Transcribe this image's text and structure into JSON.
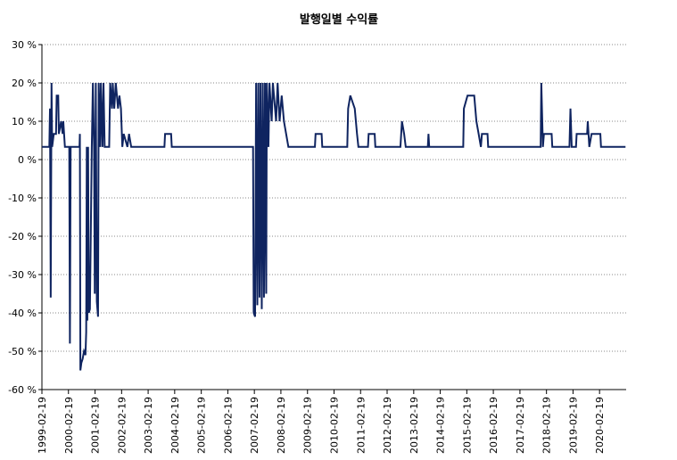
{
  "chart_data": {
    "type": "line",
    "title": "발행일별 수익률",
    "x": [
      "1999-02-19",
      "1999-06-01",
      "1999-06-10",
      "1999-06-20",
      "1999-07-01",
      "1999-07-10",
      "1999-08-01",
      "1999-09-01",
      "1999-09-10",
      "1999-10-01",
      "1999-10-10",
      "1999-11-10",
      "1999-12-01",
      "1999-12-10",
      "2000-01-01",
      "2000-03-01",
      "2000-03-10",
      "2000-03-20",
      "2000-07-20",
      "2000-07-25",
      "2000-08-01",
      "2000-08-15",
      "2000-09-01",
      "2000-09-20",
      "2000-10-10",
      "2000-10-20",
      "2000-10-28",
      "2000-11-05",
      "2000-11-15",
      "2000-11-25",
      "2000-12-10",
      "2001-01-05",
      "2001-01-20",
      "2001-02-05",
      "2001-02-15",
      "2001-03-01",
      "2001-03-15",
      "2001-04-01",
      "2001-04-10",
      "2001-05-01",
      "2001-05-10",
      "2001-06-01",
      "2001-06-15",
      "2001-07-01",
      "2001-09-01",
      "2001-09-15",
      "2001-10-10",
      "2001-10-20",
      "2001-11-10",
      "2001-12-01",
      "2002-01-01",
      "2002-01-20",
      "2002-02-10",
      "2002-03-01",
      "2002-03-20",
      "2002-05-10",
      "2002-06-01",
      "2002-07-01",
      "2003-10-01",
      "2003-10-10",
      "2004-01-01",
      "2004-01-10",
      "2007-02-01",
      "2007-02-10",
      "2007-03-01",
      "2007-03-15",
      "2007-04-01",
      "2007-04-15",
      "2007-05-01",
      "2007-05-15",
      "2007-06-01",
      "2007-06-15",
      "2007-07-01",
      "2007-07-15",
      "2007-08-01",
      "2007-08-10",
      "2007-09-01",
      "2007-09-15",
      "2007-10-15",
      "2007-11-01",
      "2007-12-15",
      "2008-01-05",
      "2008-02-01",
      "2008-03-01",
      "2008-04-01",
      "2008-05-01",
      "2008-06-01",
      "2009-06-01",
      "2009-06-10",
      "2009-09-01",
      "2009-09-10",
      "2010-08-20",
      "2010-09-01",
      "2010-10-01",
      "2010-12-01",
      "2011-01-01",
      "2011-01-20",
      "2011-06-01",
      "2011-06-10",
      "2011-09-01",
      "2011-09-10",
      "2012-08-20",
      "2012-09-10",
      "2012-10-10",
      "2012-11-01",
      "2013-09-01",
      "2013-09-10",
      "2013-09-20",
      "2015-01-01",
      "2015-01-10",
      "2015-03-01",
      "2015-06-01",
      "2015-07-01",
      "2015-08-01",
      "2015-09-01",
      "2015-09-15",
      "2015-12-01",
      "2015-12-10",
      "2017-12-01",
      "2017-12-10",
      "2018-01-01",
      "2018-01-15",
      "2018-05-01",
      "2018-05-10",
      "2019-01-01",
      "2019-01-15",
      "2019-02-01",
      "2019-04-01",
      "2019-04-10",
      "2019-09-01",
      "2019-09-10",
      "2019-10-01",
      "2019-11-01",
      "2020-03-01",
      "2020-03-10",
      "2021-02-10"
    ],
    "values": [
      3.3,
      3.3,
      13.3,
      -36,
      20,
      3.3,
      6.7,
      6.7,
      16.7,
      16.7,
      6.7,
      10,
      6.7,
      10,
      3.3,
      3.3,
      -48,
      3.3,
      3.3,
      6.7,
      -55,
      -53,
      -52,
      -50,
      -51,
      -45,
      3.3,
      -42,
      3.3,
      -40,
      -39,
      3.3,
      20,
      3.3,
      -35,
      20,
      -37,
      -41,
      20,
      3.3,
      20,
      3.3,
      20,
      3.3,
      3.3,
      20,
      13.3,
      20,
      13.3,
      20,
      13.3,
      16.7,
      13.3,
      3.3,
      6.7,
      3.3,
      6.7,
      3.3,
      3.3,
      6.7,
      6.7,
      3.3,
      3.3,
      -40,
      -41,
      20,
      -38,
      20,
      -36,
      20,
      -39,
      20,
      -36,
      20,
      -35,
      20,
      3.3,
      20,
      10,
      20,
      10,
      20,
      10,
      16.7,
      10,
      6.7,
      3.3,
      3.3,
      6.7,
      6.7,
      3.3,
      3.3,
      13.3,
      16.7,
      13.3,
      6.7,
      3.3,
      3.3,
      6.7,
      6.7,
      3.3,
      3.3,
      10,
      6.7,
      3.3,
      3.3,
      6.7,
      3.3,
      3.3,
      13.3,
      16.7,
      16.7,
      10,
      6.7,
      3.3,
      6.7,
      6.7,
      3.3,
      3.3,
      20,
      3.3,
      6.7,
      6.7,
      3.3,
      3.3,
      13.3,
      3.3,
      3.3,
      6.7,
      6.7,
      10,
      3.3,
      6.7,
      6.7,
      3.3,
      3.3
    ],
    "color": "#0f2460",
    "xlim": [
      "1999-02-19",
      "2021-02-19"
    ],
    "xticks": [
      "1999-02-19",
      "2000-02-19",
      "2001-02-19",
      "2002-02-19",
      "2003-02-19",
      "2004-02-19",
      "2005-02-19",
      "2006-02-19",
      "2007-02-19",
      "2008-02-19",
      "2009-02-19",
      "2010-02-19",
      "2011-02-19",
      "2012-02-19",
      "2013-02-19",
      "2014-02-19",
      "2015-02-19",
      "2016-02-19",
      "2017-02-19",
      "2018-02-19",
      "2019-02-19",
      "2020-02-19"
    ],
    "ylim": [
      -60,
      30
    ],
    "yticks": [
      {
        "value": -60,
        "label": "-60 %"
      },
      {
        "value": -50,
        "label": "-50 %"
      },
      {
        "value": -40,
        "label": "-40 %"
      },
      {
        "value": -30,
        "label": "-30 %"
      },
      {
        "value": -20,
        "label": "-20 %"
      },
      {
        "value": -10,
        "label": "-10 %"
      },
      {
        "value": 0,
        "label": "0 %"
      },
      {
        "value": 10,
        "label": "10 %"
      },
      {
        "value": 20,
        "label": "20 %"
      },
      {
        "value": 30,
        "label": "30 %"
      }
    ],
    "grid": true
  }
}
